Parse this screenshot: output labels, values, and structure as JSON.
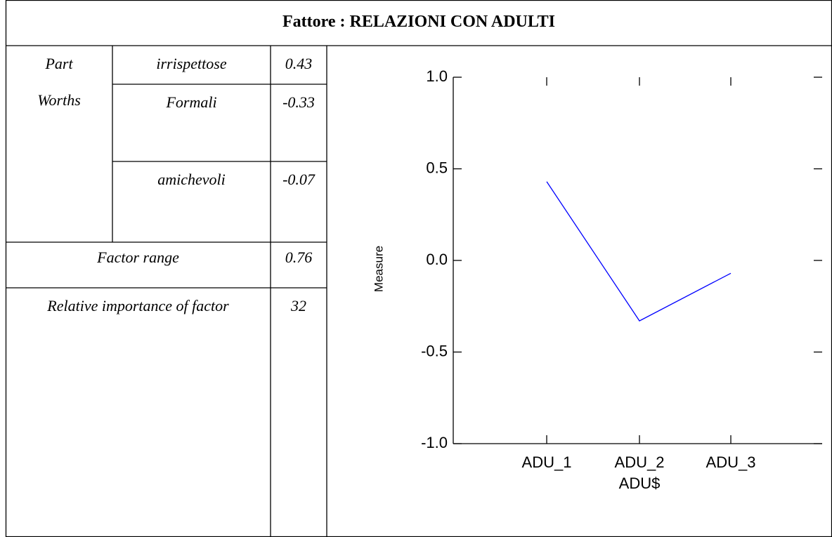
{
  "table": {
    "title": "Fattore : RELAZIONI CON ADULTI",
    "part_worths_label": "Part Worths",
    "levels": [
      {
        "name": "irrispettose",
        "value": "0.43"
      },
      {
        "name": "Formali",
        "value": "-0.33"
      },
      {
        "name": "amichevoli",
        "value": "-0.07"
      }
    ],
    "factor_range_label": "Factor range",
    "factor_range_value": "0.76",
    "importance_label": "Relative importance of factor",
    "importance_value": "32"
  },
  "chart_data": {
    "type": "line",
    "categories": [
      "ADU_1",
      "ADU_2",
      "ADU_3"
    ],
    "series": [
      {
        "name": "Measure",
        "color": "#0000ff",
        "values": [
          0.43,
          -0.33,
          -0.07
        ]
      }
    ],
    "xlabel": "ADU$",
    "ylabel": "Measure",
    "ylim": [
      -1,
      1
    ],
    "yticks": [
      {
        "value": -1,
        "label": "-1.0"
      },
      -0.5,
      {
        "value": 0,
        "label": "0.0"
      },
      0.5,
      {
        "value": 1,
        "label": "1.0"
      }
    ]
  }
}
